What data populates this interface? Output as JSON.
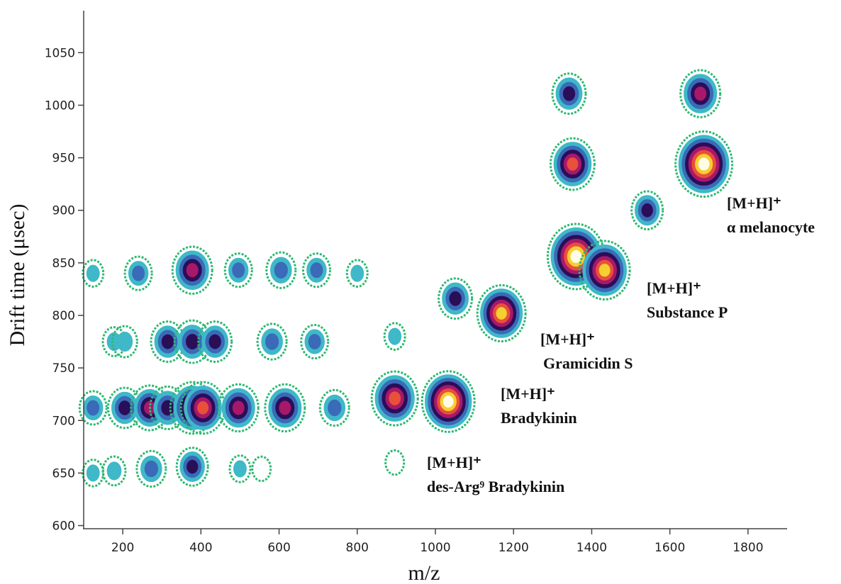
{
  "chart_data": {
    "type": "contour",
    "xlabel": "m/z",
    "ylabel": "Drift time (μsec)",
    "xlim": [
      100,
      1900
    ],
    "ylim": [
      597,
      1090
    ],
    "xticks": [
      200,
      400,
      600,
      800,
      1000,
      1200,
      1400,
      1600,
      1800
    ],
    "yticks": [
      600,
      650,
      700,
      750,
      800,
      850,
      900,
      950,
      1000,
      1050
    ],
    "colormap": [
      "#2eb872",
      "#3fb8c8",
      "#3a6ab8",
      "#2a0e58",
      "#a8186a",
      "#e8503a",
      "#f5d030",
      "#fffbe6"
    ],
    "x": [
      124,
      205,
      269,
      315,
      378,
      405,
      496,
      615,
      742,
      896,
      1033,
      124,
      178,
      273,
      378,
      500,
      555,
      896,
      178,
      205,
      315,
      378,
      436,
      582,
      691,
      896,
      124,
      240,
      378,
      496,
      605,
      696,
      800,
      1051,
      1169,
      1360,
      1433,
      1351,
      1342,
      1542,
      1687,
      1678
    ],
    "y": [
      712,
      712,
      712,
      712,
      712,
      712,
      712,
      712,
      712,
      721,
      718,
      650,
      652,
      654,
      656,
      654,
      654,
      660,
      775,
      775,
      775,
      775,
      775,
      775,
      775,
      780,
      840,
      840,
      843,
      843,
      843,
      843,
      840,
      816,
      802,
      856,
      843,
      944,
      1011,
      900,
      944,
      1011
    ],
    "intensity": [
      0.3,
      0.45,
      0.55,
      0.5,
      0.7,
      0.7,
      0.6,
      0.6,
      0.35,
      0.75,
      0.9,
      0.15,
      0.2,
      0.35,
      0.4,
      0.15,
      0.1,
      0.1,
      0.2,
      0.25,
      0.45,
      0.5,
      0.45,
      0.35,
      0.3,
      0.15,
      0.15,
      0.3,
      0.6,
      0.3,
      0.35,
      0.3,
      0.15,
      0.45,
      0.8,
      1,
      0.85,
      0.7,
      0.45,
      0.4,
      1,
      0.6
    ],
    "annotations": [
      {
        "ion": "[M+H]⁺",
        "label": "des-Arg⁹ Bradykinin"
      },
      {
        "ion": "[M+H]⁺",
        "label": "Bradykinin"
      },
      {
        "ion": "[M+H]⁺",
        "label": "Gramicidin S"
      },
      {
        "ion": "[M+H]⁺",
        "label": "Substance P"
      },
      {
        "ion": "[M+H]⁺",
        "label": "α melanocyte"
      }
    ]
  }
}
